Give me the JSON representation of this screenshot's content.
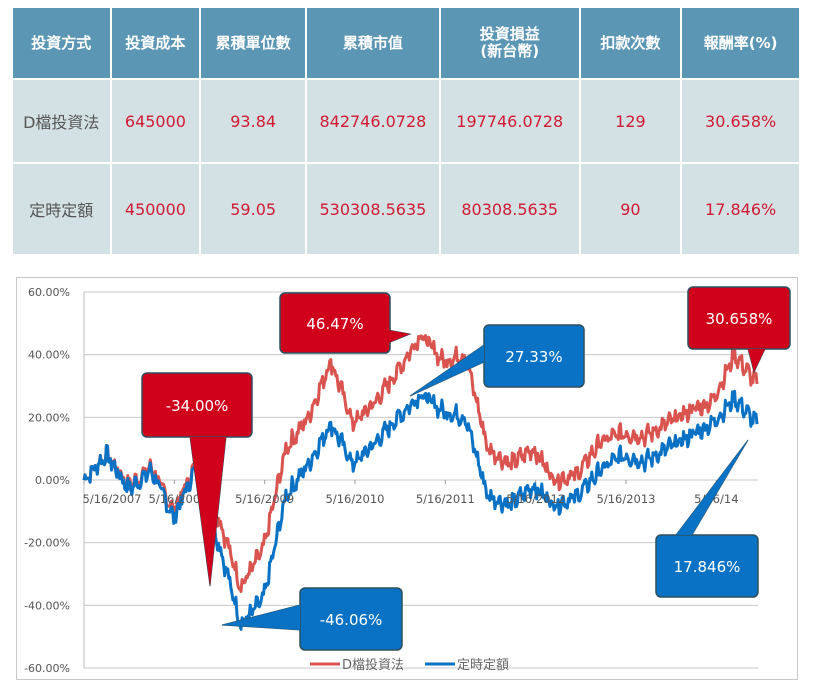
{
  "table": {
    "headers": [
      "投資方式",
      "投資成本",
      "累積單位數",
      "累積市值",
      "投資損益\n(新台幣)",
      "扣款次數",
      "報酬率(%)"
    ],
    "header_lines": {
      "pl_line1": "投資損益",
      "pl_line2": "(新台幣)"
    },
    "rows": [
      {
        "method": "D檔投資法",
        "cost": "645000",
        "units": "93.84",
        "market_value": "842746.0728",
        "profit": "197746.0728",
        "deductions": "129",
        "return": "30.658%"
      },
      {
        "method": "定時定額",
        "cost": "450000",
        "units": "59.05",
        "market_value": "530308.5635",
        "profit": "80308.5635",
        "deductions": "90",
        "return": "17.846%"
      }
    ]
  },
  "colors": {
    "header_bg": "#5b96b5",
    "cell_bg": "#d3e0e4",
    "value_text": "#d21a32",
    "series_d": "#d9534f",
    "series_fixed": "#0a72c4",
    "callout_red": "#d0021b",
    "callout_blue": "#0a72c4"
  },
  "chart_data": {
    "type": "line",
    "title": "",
    "xlabel": "",
    "ylabel": "",
    "ylim": [
      -60,
      60
    ],
    "yticks": [
      "60.00%",
      "40.00%",
      "20.00%",
      "0.00%",
      "-20.00%",
      "-40.00%",
      "-60.00%"
    ],
    "xticks": [
      "5/16/2007",
      "5/16/2008",
      "5/16/2009",
      "5/16/2010",
      "5/16/2011",
      "5/16/2012",
      "5/16/2013",
      "5/16/2014"
    ],
    "xtick_display": [
      "5/16/2007",
      "5/16/200",
      "5/16/2009",
      "5/16/2010",
      "5/16/2011",
      "5/16/2012",
      "5/16/2013",
      "5/16/14"
    ],
    "grid": true,
    "legend_position": "bottom",
    "x": [
      "2007-05",
      "2007-08",
      "2007-11",
      "2008-02",
      "2008-05",
      "2008-08",
      "2008-11",
      "2009-02",
      "2009-05",
      "2009-08",
      "2009-11",
      "2010-02",
      "2010-05",
      "2010-08",
      "2010-11",
      "2011-02",
      "2011-05",
      "2011-08",
      "2011-11",
      "2012-02",
      "2012-05",
      "2012-08",
      "2012-11",
      "2013-02",
      "2013-05",
      "2013-08",
      "2013-11",
      "2014-02",
      "2014-05",
      "2014-08",
      "2014-10"
    ],
    "series": [
      {
        "name": "D檔投資法",
        "values": [
          0,
          8,
          -2,
          4,
          -10,
          5,
          -12,
          -34,
          -22,
          10,
          20,
          38,
          18,
          25,
          35,
          46.47,
          38,
          40,
          10,
          5,
          10,
          0,
          2,
          12,
          15,
          14,
          18,
          22,
          25,
          40,
          30.658
        ]
      },
      {
        "name": "定時定額",
        "values": [
          0,
          8,
          -3,
          3,
          -12,
          4,
          -20,
          -46.06,
          -38,
          -5,
          5,
          18,
          5,
          12,
          20,
          27.33,
          22,
          20,
          -5,
          -8,
          -2,
          -8,
          -5,
          3,
          8,
          6,
          10,
          14,
          18,
          26,
          17.846
        ]
      }
    ],
    "annotations": [
      {
        "text": "-34.00%",
        "series": "D檔投資法",
        "color": "red"
      },
      {
        "text": "46.47%",
        "series": "D檔投資法",
        "color": "red"
      },
      {
        "text": "30.658%",
        "series": "D檔投資法",
        "color": "red"
      },
      {
        "text": "-46.06%",
        "series": "定時定額",
        "color": "blue"
      },
      {
        "text": "27.33%",
        "series": "定時定額",
        "color": "blue"
      },
      {
        "text": "17.846%",
        "series": "定時定額",
        "color": "blue"
      }
    ],
    "legend": [
      "D檔投資法",
      "定時定額"
    ]
  }
}
